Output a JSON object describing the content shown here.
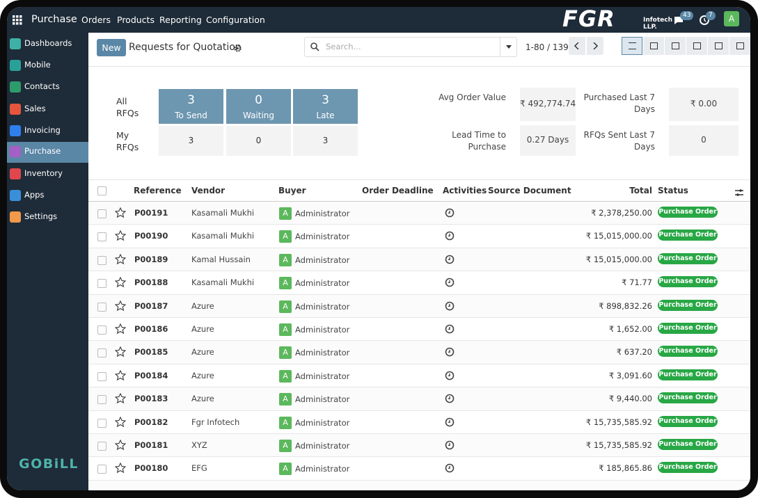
{
  "navbar": {
    "app": "Purchase",
    "menu": [
      "Orders",
      "Products",
      "Reporting",
      "Configuration"
    ],
    "logo": "FGR",
    "logo_sub": "Infotech LLP.",
    "messages_badge": "43",
    "activities_badge": "7",
    "user_avatar": "A"
  },
  "sidebar": {
    "items": [
      {
        "label": "Dashboards",
        "color": "#3fb0a5"
      },
      {
        "label": "Mobile",
        "color": "#2aa198"
      },
      {
        "label": "Contacts",
        "color": "#2c9c6a"
      },
      {
        "label": "Sales",
        "color": "#e8553d"
      },
      {
        "label": "Invoicing",
        "color": "#2f80ed"
      },
      {
        "label": "Purchase",
        "color": "#a55fc5",
        "active": true
      },
      {
        "label": "Inventory",
        "color": "#e0474c"
      },
      {
        "label": "Apps",
        "color": "#3a8fd9"
      },
      {
        "label": "Settings",
        "color": "#f2994a"
      }
    ],
    "brand": "GOBiLL"
  },
  "control_panel": {
    "new_button": "New",
    "title": "Requests for Quotation",
    "search_placeholder": "Search...",
    "pager": "1-80 / 139"
  },
  "dashboard": {
    "all_label": "All RFQs",
    "my_label": "My RFQs",
    "tiles": [
      {
        "count": 3,
        "label": "To Send",
        "my": 3
      },
      {
        "count": 0,
        "label": "Waiting",
        "my": 0
      },
      {
        "count": 3,
        "label": "Late",
        "my": 3
      }
    ],
    "stats": [
      {
        "label": "Avg Order Value",
        "value": "₹ 492,774.74"
      },
      {
        "label": "Purchased Last 7 Days",
        "value": "₹ 0.00"
      },
      {
        "label": "Lead Time to Purchase",
        "value": "0.27 Days"
      },
      {
        "label": "RFQs Sent Last 7 Days",
        "value": "0"
      }
    ]
  },
  "table": {
    "columns": [
      "Reference",
      "Vendor",
      "Buyer",
      "Order Deadline",
      "Activities",
      "Source Document",
      "Total",
      "Status"
    ],
    "rows": [
      {
        "reference": "P00191",
        "vendor": "Kasamali Mukhi",
        "buyer_avatar": "A",
        "buyer": "Administrator",
        "total": "₹ 2,378,250.00",
        "status": "Purchase Order"
      },
      {
        "reference": "P00190",
        "vendor": "Kasamali Mukhi",
        "buyer_avatar": "A",
        "buyer": "Administrator",
        "total": "₹ 15,015,000.00",
        "status": "Purchase Order"
      },
      {
        "reference": "P00189",
        "vendor": "Kamal Hussain",
        "buyer_avatar": "A",
        "buyer": "Administrator",
        "total": "₹ 15,015,000.00",
        "status": "Purchase Order"
      },
      {
        "reference": "P00188",
        "vendor": "Kasamali Mukhi",
        "buyer_avatar": "A",
        "buyer": "Administrator",
        "total": "₹ 71.77",
        "status": "Purchase Order"
      },
      {
        "reference": "P00187",
        "vendor": "Azure",
        "buyer_avatar": "A",
        "buyer": "Administrator",
        "total": "₹ 898,832.26",
        "status": "Purchase Order"
      },
      {
        "reference": "P00186",
        "vendor": "Azure",
        "buyer_avatar": "A",
        "buyer": "Administrator",
        "total": "₹ 1,652.00",
        "status": "Purchase Order"
      },
      {
        "reference": "P00185",
        "vendor": "Azure",
        "buyer_avatar": "A",
        "buyer": "Administrator",
        "total": "₹ 637.20",
        "status": "Purchase Order"
      },
      {
        "reference": "P00184",
        "vendor": "Azure",
        "buyer_avatar": "A",
        "buyer": "Administrator",
        "total": "₹ 3,091.60",
        "status": "Purchase Order"
      },
      {
        "reference": "P00183",
        "vendor": "Azure",
        "buyer_avatar": "A",
        "buyer": "Administrator",
        "total": "₹ 9,440.00",
        "status": "Purchase Order"
      },
      {
        "reference": "P00182",
        "vendor": "Fgr Infotech",
        "buyer_avatar": "A",
        "buyer": "Administrator",
        "total": "₹ 15,735,585.92",
        "status": "Purchase Order"
      },
      {
        "reference": "P00181",
        "vendor": "XYZ",
        "buyer_avatar": "A",
        "buyer": "Administrator",
        "total": "₹ 15,735,585.92",
        "status": "Purchase Order"
      },
      {
        "reference": "P00180",
        "vendor": "EFG",
        "buyer_avatar": "A",
        "buyer": "Administrator",
        "total": "₹ 185,865.86",
        "status": "Purchase Order"
      }
    ]
  }
}
